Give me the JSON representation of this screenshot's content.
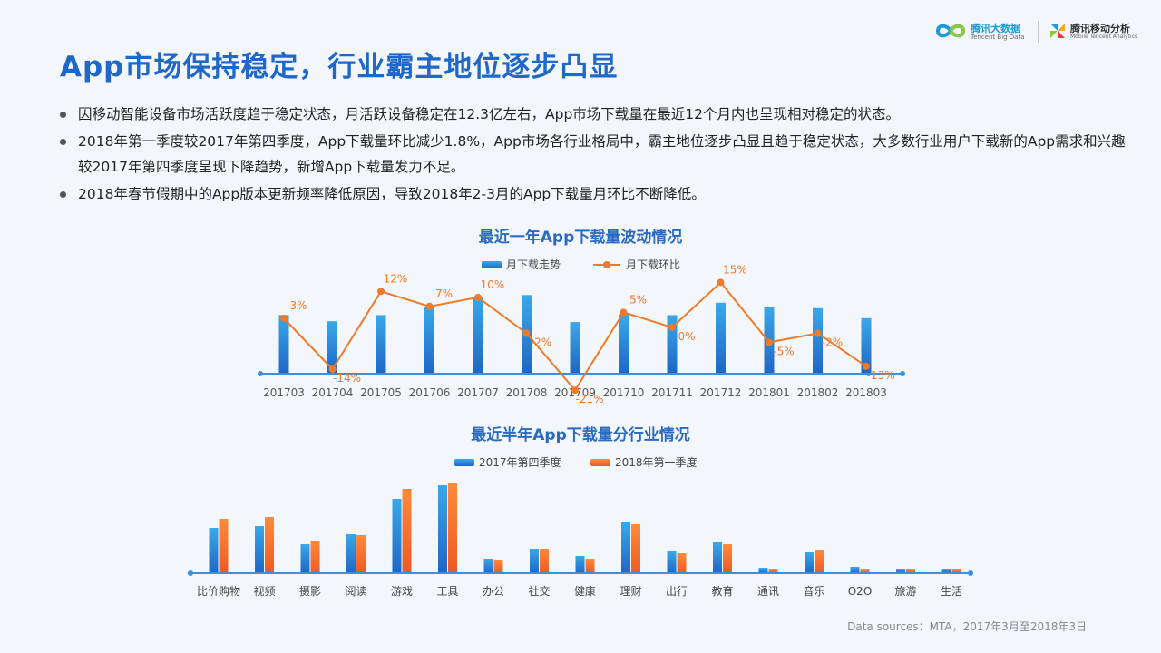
{
  "page": {
    "title": "App市场保持稳定，行业霸主地位逐步凸显",
    "bullets": [
      "因移动智能设备市场活跃度趋于稳定状态，月活跃设备稳定在12.3亿左右，App市场下载量在最近12个月内也呈现相对稳定的状态。",
      "2018年第一季度较2017年第四季度，App下载量环比减少1.8%，App市场各行业格局中，霸主地位逐步凸显且趋于稳定状态，大多数行业用户下载新的App需求和兴趣较2017年第四季度呈现下降趋势，新增App下载量发力不足。",
      "2018年春节假期中的App版本更新频率降低原因，导致2018年2-3月的App下载量月环比不断降低。"
    ],
    "footer": "Data sources：MTA，2017年3月至2018年3日"
  },
  "logos": {
    "logo1_name": "腾讯大数据",
    "logo1_sub": "Tencent Big Data",
    "logo2_name": "腾讯移动分析",
    "logo2_sub": "Mobile Tencent Analytics"
  },
  "colors": {
    "title": "#1f67c8",
    "bar_blue": "#2d86d6",
    "bar_orange": "#f26e2c",
    "line_orange": "#ee7a2a",
    "axis": "#3b8fe0"
  },
  "chart_data": [
    {
      "type": "bar+line",
      "title": "最近一年App下载量波动情况",
      "categories": [
        "201703",
        "201704",
        "201705",
        "201706",
        "201707",
        "201708",
        "201709",
        "201710",
        "201711",
        "201712",
        "201801",
        "201802",
        "201803"
      ],
      "series": [
        {
          "name": "月下载走势",
          "type": "bar",
          "values": [
            0.76,
            0.68,
            0.76,
            0.87,
            1.0,
            1.02,
            0.67,
            0.77,
            0.76,
            0.92,
            0.86,
            0.85,
            0.72
          ]
        },
        {
          "name": "月下载环比",
          "type": "line",
          "values": [
            3,
            -14,
            12,
            7,
            10,
            -2,
            -21,
            5,
            0,
            15,
            -5,
            -2,
            -13
          ],
          "labels": [
            "3%",
            "-14%",
            "12%",
            "7%",
            "10%",
            "-2%",
            "-21%",
            "5%",
            "0%",
            "15%",
            "-5%",
            "-2%",
            "-13%"
          ]
        }
      ],
      "legend": "top"
    },
    {
      "type": "bar",
      "title": "最近半年App下载量分行业情况",
      "categories": [
        "比价购物",
        "视频",
        "摄影",
        "阅读",
        "游戏",
        "工具",
        "办公",
        "社交",
        "健康",
        "理财",
        "出行",
        "教育",
        "通讯",
        "音乐",
        "O2O",
        "旅游",
        "生活"
      ],
      "series": [
        {
          "name": "2017年第四季度",
          "values": [
            50,
            52,
            32,
            43,
            82,
            97,
            16,
            27,
            19,
            56,
            24,
            34,
            6,
            23,
            7,
            5,
            5
          ]
        },
        {
          "name": "2018年第一季度",
          "values": [
            60,
            62,
            36,
            42,
            93,
            99,
            15,
            27,
            16,
            54,
            22,
            32,
            5,
            26,
            5,
            5,
            5
          ]
        }
      ],
      "legend": "top"
    }
  ]
}
